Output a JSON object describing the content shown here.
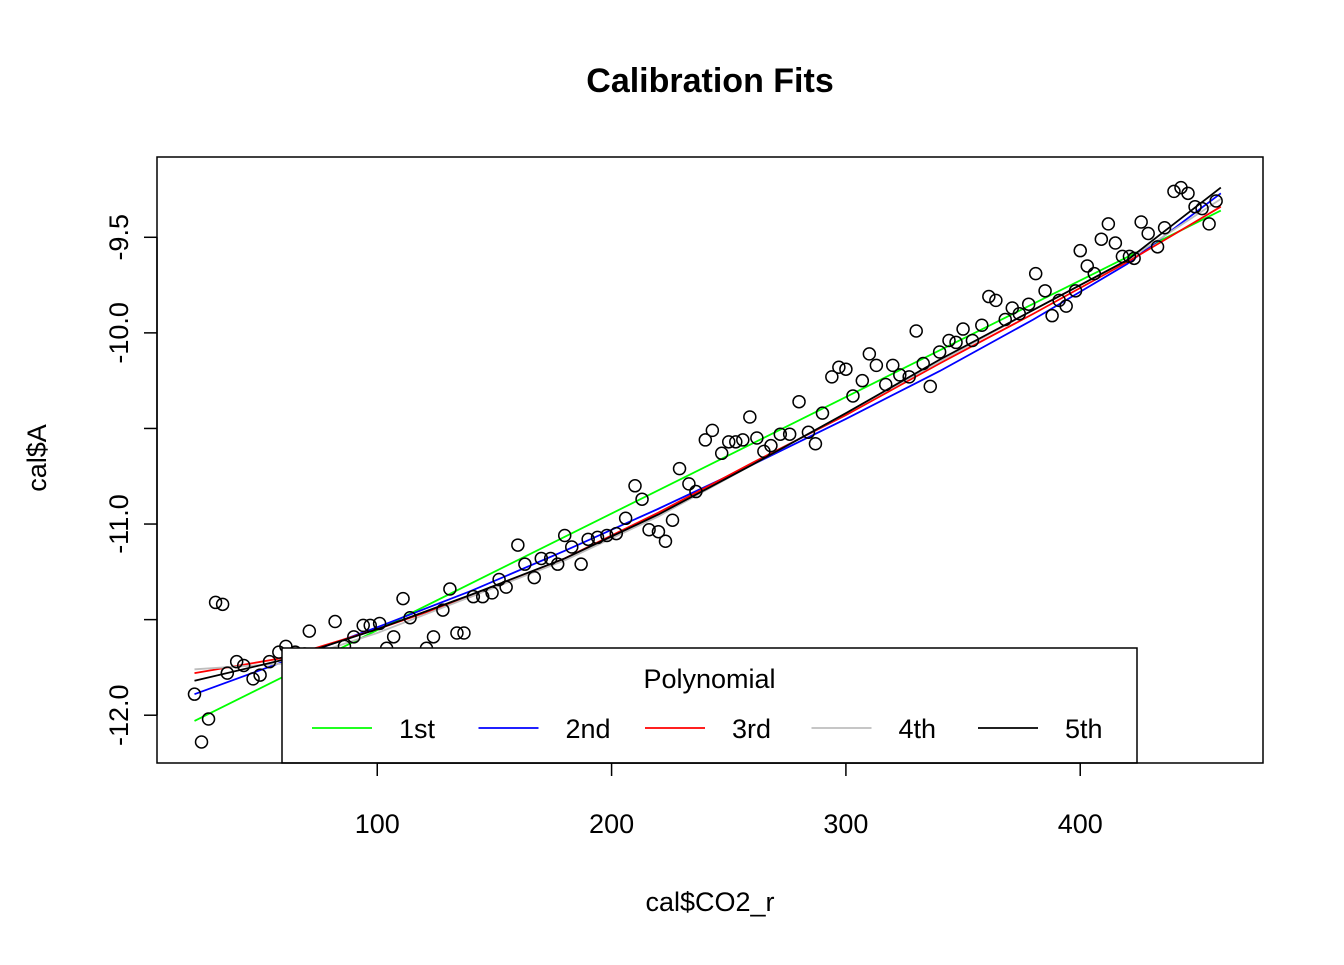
{
  "chart_data": {
    "type": "scatter",
    "title": "Calibration Fits",
    "xlabel": "cal$CO2_r",
    "ylabel": "cal$A",
    "xlim": [
      6,
      478
    ],
    "ylim": [
      -12.25,
      -9.08
    ],
    "xticks": [
      100,
      200,
      300,
      400
    ],
    "yticks": [
      -12.0,
      -11.5,
      -11.0,
      -10.5,
      -10.0,
      -9.5
    ],
    "ytick_labels": [
      "-12.0",
      "",
      "-11.0",
      "",
      "-10.0",
      "-9.5"
    ],
    "grid": false,
    "legend": {
      "title": "Polynomial",
      "placement": "bottom-center",
      "entries": [
        "1st",
        "2nd",
        "3rd",
        "4th",
        "5th"
      ]
    },
    "points": [
      [
        22,
        -11.89
      ],
      [
        25,
        -12.14
      ],
      [
        28,
        -12.02
      ],
      [
        31,
        -11.41
      ],
      [
        34,
        -11.42
      ],
      [
        36,
        -11.78
      ],
      [
        40,
        -11.72
      ],
      [
        43,
        -11.74
      ],
      [
        47,
        -11.81
      ],
      [
        50,
        -11.79
      ],
      [
        54,
        -11.72
      ],
      [
        58,
        -11.67
      ],
      [
        61,
        -11.64
      ],
      [
        65,
        -11.67
      ],
      [
        69,
        -11.68
      ],
      [
        71,
        -11.56
      ],
      [
        75,
        -11.71
      ],
      [
        79,
        -11.72
      ],
      [
        82,
        -11.51
      ],
      [
        86,
        -11.64
      ],
      [
        90,
        -11.59
      ],
      [
        94,
        -11.53
      ],
      [
        97,
        -11.53
      ],
      [
        101,
        -11.52
      ],
      [
        104,
        -11.65
      ],
      [
        107,
        -11.59
      ],
      [
        111,
        -11.39
      ],
      [
        114,
        -11.49
      ],
      [
        118,
        -11.69
      ],
      [
        121,
        -11.65
      ],
      [
        124,
        -11.59
      ],
      [
        128,
        -11.45
      ],
      [
        131,
        -11.34
      ],
      [
        134,
        -11.57
      ],
      [
        137,
        -11.57
      ],
      [
        141,
        -11.38
      ],
      [
        145,
        -11.38
      ],
      [
        149,
        -11.36
      ],
      [
        152,
        -11.29
      ],
      [
        155,
        -11.33
      ],
      [
        160,
        -11.11
      ],
      [
        163,
        -11.21
      ],
      [
        167,
        -11.28
      ],
      [
        170,
        -11.18
      ],
      [
        174,
        -11.18
      ],
      [
        177,
        -11.21
      ],
      [
        180,
        -11.06
      ],
      [
        183,
        -11.12
      ],
      [
        187,
        -11.21
      ],
      [
        190,
        -11.08
      ],
      [
        194,
        -11.07
      ],
      [
        198,
        -11.06
      ],
      [
        202,
        -11.05
      ],
      [
        206,
        -10.97
      ],
      [
        210,
        -10.8
      ],
      [
        213,
        -10.87
      ],
      [
        216,
        -11.03
      ],
      [
        220,
        -11.04
      ],
      [
        223,
        -11.09
      ],
      [
        226,
        -10.98
      ],
      [
        229,
        -10.71
      ],
      [
        233,
        -10.79
      ],
      [
        236,
        -10.83
      ],
      [
        240,
        -10.56
      ],
      [
        243,
        -10.51
      ],
      [
        247,
        -10.63
      ],
      [
        250,
        -10.57
      ],
      [
        253,
        -10.57
      ],
      [
        256,
        -10.56
      ],
      [
        259,
        -10.44
      ],
      [
        262,
        -10.55
      ],
      [
        265,
        -10.62
      ],
      [
        268,
        -10.59
      ],
      [
        272,
        -10.53
      ],
      [
        276,
        -10.53
      ],
      [
        280,
        -10.36
      ],
      [
        284,
        -10.52
      ],
      [
        287,
        -10.58
      ],
      [
        290,
        -10.42
      ],
      [
        294,
        -10.23
      ],
      [
        297,
        -10.18
      ],
      [
        300,
        -10.19
      ],
      [
        303,
        -10.33
      ],
      [
        307,
        -10.25
      ],
      [
        310,
        -10.11
      ],
      [
        313,
        -10.17
      ],
      [
        317,
        -10.27
      ],
      [
        320,
        -10.17
      ],
      [
        323,
        -10.22
      ],
      [
        327,
        -10.23
      ],
      [
        330,
        -9.99
      ],
      [
        333,
        -10.16
      ],
      [
        336,
        -10.28
      ],
      [
        340,
        -10.1
      ],
      [
        344,
        -10.04
      ],
      [
        347,
        -10.05
      ],
      [
        350,
        -9.98
      ],
      [
        354,
        -10.04
      ],
      [
        358,
        -9.96
      ],
      [
        361,
        -9.81
      ],
      [
        364,
        -9.83
      ],
      [
        368,
        -9.93
      ],
      [
        371,
        -9.87
      ],
      [
        374,
        -9.9
      ],
      [
        378,
        -9.85
      ],
      [
        381,
        -9.69
      ],
      [
        385,
        -9.78
      ],
      [
        388,
        -9.91
      ],
      [
        391,
        -9.83
      ],
      [
        394,
        -9.86
      ],
      [
        398,
        -9.78
      ],
      [
        400,
        -9.57
      ],
      [
        403,
        -9.65
      ],
      [
        406,
        -9.69
      ],
      [
        409,
        -9.51
      ],
      [
        412,
        -9.43
      ],
      [
        415,
        -9.53
      ],
      [
        418,
        -9.6
      ],
      [
        421,
        -9.6
      ],
      [
        423,
        -9.61
      ],
      [
        426,
        -9.42
      ],
      [
        429,
        -9.48
      ],
      [
        433,
        -9.55
      ],
      [
        436,
        -9.45
      ],
      [
        440,
        -9.26
      ],
      [
        443,
        -9.24
      ],
      [
        446,
        -9.27
      ],
      [
        449,
        -9.34
      ],
      [
        452,
        -9.35
      ],
      [
        455,
        -9.43
      ],
      [
        458,
        -9.31
      ]
    ],
    "series": [
      {
        "name": "1st",
        "color": "#00ff00",
        "x": [
          22,
          460
        ],
        "y": [
          -12.03,
          -9.36
        ]
      },
      {
        "name": "2nd",
        "color": "#0000ff",
        "x": [
          22,
          60,
          100,
          140,
          180,
          220,
          260,
          300,
          340,
          380,
          420,
          460
        ],
        "y": [
          -11.89,
          -11.72,
          -11.54,
          -11.35,
          -11.14,
          -10.92,
          -10.69,
          -10.45,
          -10.2,
          -9.93,
          -9.64,
          -9.27
        ]
      },
      {
        "name": "3rd",
        "color": "#ff0000",
        "x": [
          22,
          60,
          100,
          140,
          180,
          220,
          260,
          300,
          340,
          380,
          420,
          460
        ],
        "y": [
          -11.78,
          -11.7,
          -11.55,
          -11.38,
          -11.18,
          -10.94,
          -10.68,
          -10.43,
          -10.16,
          -9.9,
          -9.63,
          -9.34
        ]
      },
      {
        "name": "4th",
        "color": "#bebebe",
        "x": [
          22,
          60,
          100,
          140,
          180,
          220,
          260,
          300,
          340,
          380,
          420,
          460
        ],
        "y": [
          -11.76,
          -11.73,
          -11.57,
          -11.38,
          -11.19,
          -10.96,
          -10.69,
          -10.42,
          -10.15,
          -9.88,
          -9.62,
          -9.3
        ]
      },
      {
        "name": "5th",
        "color": "#000000",
        "x": [
          22,
          60,
          100,
          140,
          180,
          220,
          260,
          300,
          340,
          380,
          420,
          460
        ],
        "y": [
          -11.82,
          -11.71,
          -11.55,
          -11.37,
          -11.18,
          -10.95,
          -10.69,
          -10.42,
          -10.14,
          -9.88,
          -9.62,
          -9.24
        ]
      }
    ]
  }
}
